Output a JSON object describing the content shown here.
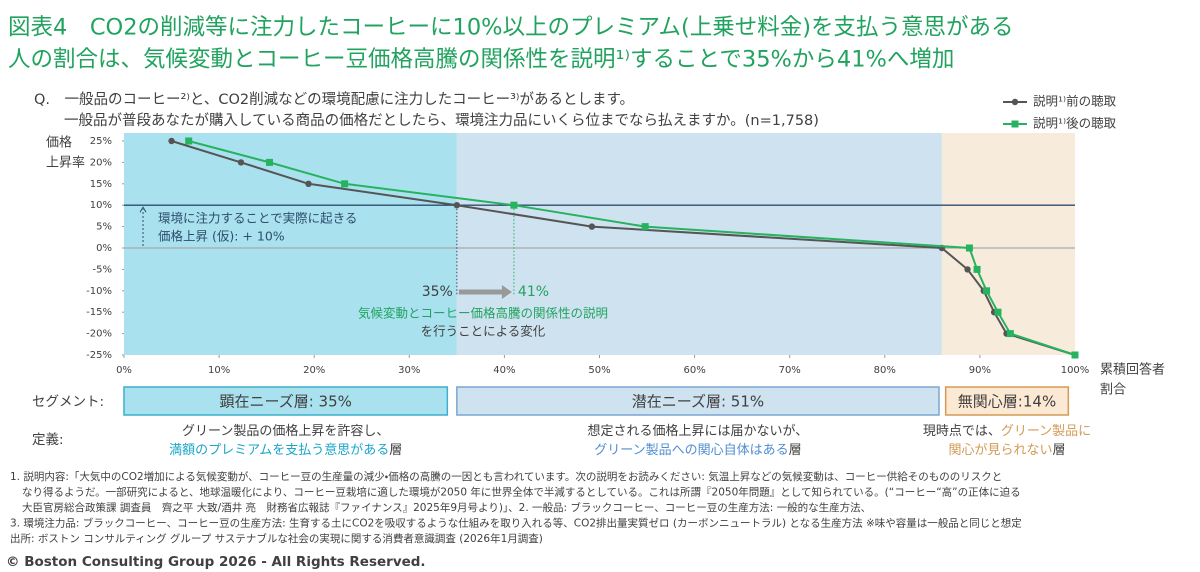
{
  "title_lines": [
    "図表4　CO2の削減等に注力したコーヒーに10%以上のプレミアム(上乗せ料金)を支払う意思がある",
    "人の割合は、気候変動とコーヒー豆価格高騰の関係性を説明¹⁾することで35%から41%へ増加"
  ],
  "question": [
    "Q.　一般品のコーヒー²⁾と、CO2削減などの環境配慮に注力したコーヒー³⁾があるとします。",
    "一般品が普段あなたが購入している商品の価格だとしたら、環境注力品にいくら位までなら払えますか。(n=1,758)"
  ],
  "chart_data": {
    "type": "line",
    "y_label": [
      "価格",
      "上昇率"
    ],
    "x_label": [
      "累積回答者",
      "割合"
    ],
    "xlim": [
      0,
      100
    ],
    "ylim": [
      -25,
      25
    ],
    "xticks": [
      {
        "value": 0,
        "label": "0%"
      },
      {
        "value": 10,
        "label": "10%"
      },
      {
        "value": 20,
        "label": "20%"
      },
      {
        "value": 30,
        "label": "30%"
      },
      {
        "value": 40,
        "label": "40%"
      },
      {
        "value": 50,
        "label": "50%"
      },
      {
        "value": 60,
        "label": "60%"
      },
      {
        "value": 70,
        "label": "70%"
      },
      {
        "value": 80,
        "label": "80%"
      },
      {
        "value": 90,
        "label": "90%"
      },
      {
        "value": 100,
        "label": "100%"
      }
    ],
    "yticks": [
      {
        "value": 25,
        "label": "25%"
      },
      {
        "value": 20,
        "label": "20%"
      },
      {
        "value": 15,
        "label": "15%"
      },
      {
        "value": 10,
        "label": "10%"
      },
      {
        "value": 5,
        "label": "5%"
      },
      {
        "value": 0,
        "label": "0%"
      },
      {
        "value": -5,
        "label": "-5%"
      },
      {
        "value": -10,
        "label": "-10%"
      },
      {
        "value": -15,
        "label": "-15%"
      },
      {
        "value": -20,
        "label": "-20%"
      },
      {
        "value": -25,
        "label": "-25%"
      }
    ],
    "bands": [
      {
        "from": 0,
        "to": 35,
        "color": "#a9e2ee"
      },
      {
        "from": 35,
        "to": 86,
        "color": "#cfe2f0"
      },
      {
        "from": 86,
        "to": 100,
        "color": "#f7ebdc"
      }
    ],
    "reference_lines": [
      {
        "value": 10,
        "color": "#2f4d6e"
      },
      {
        "value": 0,
        "color": "#a8a8a8"
      }
    ],
    "reference_note": [
      "環境に注力することで実際に起きる",
      "価格上昇 (仮): + 10%"
    ],
    "legend": "upper right",
    "series": [
      {
        "name": "説明¹⁾前の聴取",
        "color": "#555555",
        "marker": "circle",
        "x": [
          5,
          12.3,
          19.4,
          35,
          49.2,
          86,
          88.7,
          90.4,
          91.5,
          92.8,
          100
        ],
        "values": [
          25,
          20,
          15,
          10,
          5,
          0,
          -5,
          -10,
          -15,
          -20,
          -25
        ]
      },
      {
        "name": "説明¹⁾後の聴取",
        "color": "#26b35f",
        "marker": "square",
        "x": [
          6.8,
          15.3,
          23.2,
          41,
          54.8,
          88.9,
          89.7,
          90.7,
          91.9,
          93.2,
          100
        ],
        "values": [
          25,
          20,
          15,
          10,
          5,
          0,
          -5,
          -10,
          -15,
          -20,
          -25
        ]
      }
    ],
    "change": {
      "from": 35,
      "to": 41,
      "from_label": "35%",
      "to_label": "41%",
      "text": [
        "気候変動とコーヒー価格高騰の関係性の説明",
        "を行うことによる変化"
      ]
    }
  },
  "segments": {
    "label": "セグメント:",
    "items": [
      {
        "text": "顕在ニーズ層: 35%",
        "from": 0,
        "to": 34,
        "fill": "#a9e2ee",
        "stroke": "#3ab0cc"
      },
      {
        "text": "潜在ニーズ層: 51%",
        "from": 35,
        "to": 85.7,
        "fill": "#cfe2f0",
        "stroke": "#7aa7cf"
      },
      {
        "text": "無関心層:14%",
        "from": 86.4,
        "to": 99.3,
        "fill": "#fbe9d3",
        "stroke": "#d49a55"
      }
    ]
  },
  "definitions": {
    "label": "定義:",
    "items": [
      [
        [
          {
            "text": "グリーン製品の価格上昇を許容し、",
            "highlight": false
          }
        ],
        [
          {
            "text": "満額のプレミアムを支払う意思がある",
            "highlight": true
          },
          {
            "text": "層",
            "highlight": false
          }
        ]
      ],
      [
        [
          {
            "text": "想定される価格上昇には届かないが、",
            "highlight": false
          }
        ],
        [
          {
            "text": "グリーン製品への関心自体はある",
            "highlight": true
          },
          {
            "text": "層",
            "highlight": false
          }
        ]
      ],
      [
        [
          {
            "text": "現時点では、",
            "highlight": false
          },
          {
            "text": "グリーン製品に",
            "highlight": true
          }
        ],
        [
          {
            "text": "関心が見られない",
            "highlight": true
          },
          {
            "text": "層",
            "highlight": false
          }
        ]
      ]
    ],
    "highlight_colors": [
      "#1aa6c9",
      "#4f8fd0",
      "#d49a55"
    ]
  },
  "footnotes": [
    "1. 説明内容:「大気中のCO2増加による気候変動が、コーヒー豆の生産量の減少・価格の高騰の一因とも言われています。次の説明をお読みください: 気温上昇などの気候変動は、コーヒー供給そのもののリスクと",
    "なり得るようだ。一部研究によると、地球温暖化により、コーヒー豆栽培に適した環境が2050 年に世界全体で半減するとしている。これは所謂『2050年問題』として知られている。(“コーヒー“高”の正体に迫る",
    "大臣官房総合政策課 調査員　齊之平 大致/酒井 亮　財務省広報誌『ファイナンス』2025年9月号より)」、2. 一般品: ブラックコーヒー、コーヒー豆の生産方法: 一般的な生産方法、",
    "3. 環境注力品: ブラックコーヒー、コーヒー豆の生産方法: 生育する土にCO2を吸収するような仕組みを取り入れる等、CO2排出量実質ゼロ (カーボンニュートラル) となる生産方法 ※味や容量は一般品と同じと想定",
    "出所: ボストン コンサルティング グループ サステナブルな社会の実現に関する消費者意識調査 (2026年1月調査)"
  ],
  "copyright": "© Boston Consulting Group 2026 - All Rights Reserved."
}
